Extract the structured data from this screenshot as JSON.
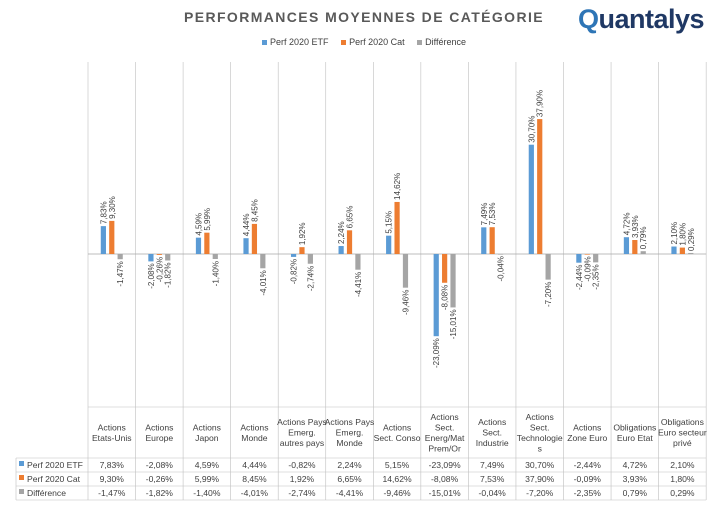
{
  "title": "PERFORMANCES MOYENNES DE CATÉGORIE",
  "logo": {
    "text": "uantalys",
    "q": "Q"
  },
  "colors": {
    "etf": "#5b9bd5",
    "cat": "#ed7d31",
    "diff": "#a5a5a5",
    "grid": "#bfbfbf",
    "text": "#404040"
  },
  "chart_data": {
    "type": "bar",
    "categories": [
      "Actions Etats-Unis",
      "Actions Europe",
      "Actions Japon",
      "Actions Monde",
      "Actions Pays Emerg. autres pays",
      "Actions Pays Emerg. Monde",
      "Actions Sect. Conso",
      "Actions Sect. Energ/Mat Prem/Or",
      "Actions Sect. Industrie",
      "Actions Sect. Technologies",
      "Actions Zone Euro",
      "Obligations Euro Etat",
      "Obligations Euro secteur privé"
    ],
    "category_lines": [
      [
        "Actions",
        "Etats-Unis"
      ],
      [
        "Actions",
        "Europe"
      ],
      [
        "Actions",
        "Japon"
      ],
      [
        "Actions",
        "Monde"
      ],
      [
        "Actions Pays",
        "Emerg.",
        "autres pays"
      ],
      [
        "Actions Pays",
        "Emerg.",
        "Monde"
      ],
      [
        "Actions",
        "Sect. Conso"
      ],
      [
        "Actions",
        "Sect.",
        "Energ/Mat",
        "Prem/Or"
      ],
      [
        "Actions",
        "Sect.",
        "Industrie"
      ],
      [
        "Actions",
        "Sect.",
        "Technologie",
        "s"
      ],
      [
        "Actions",
        "Zone Euro"
      ],
      [
        "Obligations",
        "Euro Etat"
      ],
      [
        "Obligations",
        "Euro secteur",
        "privé"
      ]
    ],
    "series": [
      {
        "name": "Perf 2020 ETF",
        "values": [
          7.83,
          -2.08,
          4.59,
          4.44,
          -0.82,
          2.24,
          5.15,
          -23.09,
          7.49,
          30.7,
          -2.44,
          4.72,
          2.1
        ],
        "labels": [
          "7,83%",
          "-2,08%",
          "4,59%",
          "4,44%",
          "-0,82%",
          "2,24%",
          "5,15%",
          "-23,09%",
          "7,49%",
          "30,70%",
          "-2,44%",
          "4,72%",
          "2,10%"
        ]
      },
      {
        "name": "Perf 2020 Cat",
        "values": [
          9.3,
          -0.26,
          5.99,
          8.45,
          1.92,
          6.65,
          14.62,
          -8.08,
          7.53,
          37.9,
          -0.09,
          3.93,
          1.8
        ],
        "labels": [
          "9,30%",
          "-0,26%",
          "5,99%",
          "8,45%",
          "1,92%",
          "6,65%",
          "14,62%",
          "-8,08%",
          "7,53%",
          "37,90%",
          "-0,09%",
          "3,93%",
          "1,80%"
        ]
      },
      {
        "name": "Différence",
        "values": [
          -1.47,
          -1.82,
          -1.4,
          -4.01,
          -2.74,
          -4.41,
          -9.46,
          -15.01,
          -0.04,
          -7.2,
          -2.35,
          0.79,
          0.29
        ],
        "labels": [
          "-1,47%",
          "-1,82%",
          "-1,40%",
          "-4,01%",
          "-2,74%",
          "-4,41%",
          "-9,46%",
          "-15,01%",
          "-0,04%",
          "-7,20%",
          "-2,35%",
          "0,79%",
          "0,29%"
        ]
      }
    ],
    "ylim": [
      -25,
      40
    ],
    "legend": "top",
    "table_below": true
  }
}
